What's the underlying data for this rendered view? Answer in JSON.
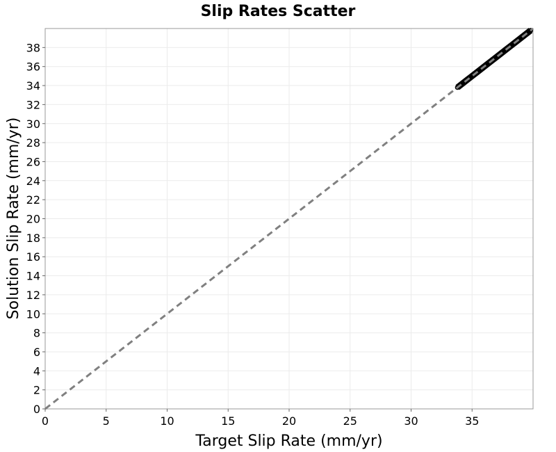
{
  "chart_data": {
    "type": "scatter",
    "title": "Slip Rates Scatter",
    "xlabel": "Target Slip Rate (mm/yr)",
    "ylabel": "Solution Slip Rate (mm/yr)",
    "xlim": [
      0,
      40
    ],
    "ylim": [
      0,
      40
    ],
    "x_ticks": [
      0,
      5,
      10,
      15,
      20,
      25,
      30,
      35
    ],
    "y_ticks": [
      0,
      2,
      4,
      6,
      8,
      10,
      12,
      14,
      16,
      18,
      20,
      22,
      24,
      26,
      28,
      30,
      32,
      34,
      36,
      38
    ],
    "grid": true,
    "reference_line": {
      "x": [
        0,
        40
      ],
      "y": [
        0,
        40
      ],
      "color": "#808080",
      "style": "dashed"
    },
    "series": [
      {
        "color": "#000000",
        "x": [
          33.8,
          34.2,
          34.6,
          35.0,
          35.4,
          35.8,
          36.2,
          36.6,
          37.0,
          37.4,
          37.8,
          38.2,
          38.6,
          39.0,
          39.4,
          39.8
        ],
        "y": [
          33.8,
          34.2,
          34.6,
          35.0,
          35.4,
          35.8,
          36.2,
          36.6,
          37.0,
          37.4,
          37.8,
          38.2,
          38.6,
          39.0,
          39.4,
          39.8
        ]
      }
    ]
  }
}
